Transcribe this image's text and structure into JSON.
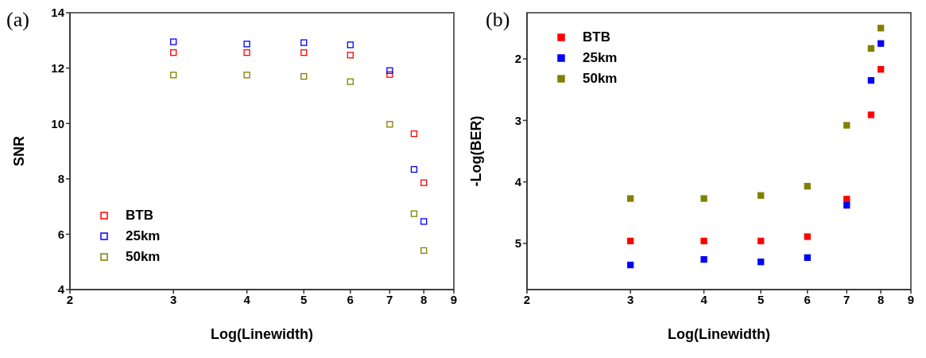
{
  "chart_data": [
    {
      "type": "scatter",
      "title": "(a)",
      "xlabel": "Log(Linewidth)",
      "ylabel": "SNR",
      "log": "x",
      "xlim": [
        2,
        9
      ],
      "xticks": [
        2,
        3,
        4,
        5,
        6,
        7,
        8,
        9
      ],
      "ylim": [
        4,
        14
      ],
      "yticks": [
        4,
        6,
        8,
        10,
        12,
        14
      ],
      "grid": false,
      "legend": "bottom left",
      "marker": "square",
      "x": [
        3,
        4,
        5,
        6,
        7,
        7.7,
        8
      ],
      "series": [
        {
          "name": "BTB",
          "color": "#ff0000",
          "values": [
            12.56,
            12.56,
            12.56,
            12.47,
            11.77,
            9.63,
            7.86
          ]
        },
        {
          "name": "25km",
          "color": "#0000ff",
          "values": [
            12.95,
            12.87,
            12.92,
            12.84,
            11.91,
            8.34,
            6.46
          ]
        },
        {
          "name": "50km",
          "color": "#808000",
          "values": [
            11.75,
            11.75,
            11.7,
            11.51,
            9.97,
            6.74,
            5.41
          ]
        }
      ]
    },
    {
      "type": "scatter",
      "title": "(b)",
      "xlabel": "Log(Linewidth)",
      "ylabel": "-Log(BER)",
      "log": "x",
      "xlim": [
        2,
        9
      ],
      "xticks": [
        2,
        3,
        4,
        5,
        6,
        7,
        8,
        9
      ],
      "ylim": [
        5.75,
        1.25
      ],
      "yticks": [
        2,
        3,
        4,
        5
      ],
      "grid": false,
      "legend": "top left",
      "marker": "square",
      "x": [
        3,
        4,
        5,
        6,
        7,
        7.7,
        8
      ],
      "series": [
        {
          "name": "BTB",
          "color": "#ff0000",
          "values": [
            4.96,
            4.96,
            4.96,
            4.89,
            4.28,
            2.91,
            2.17
          ]
        },
        {
          "name": "25km",
          "color": "#0000ff",
          "values": [
            5.35,
            5.26,
            5.3,
            5.23,
            4.38,
            2.35,
            1.75
          ]
        },
        {
          "name": "50km",
          "color": "#808000",
          "values": [
            4.27,
            4.27,
            4.22,
            4.07,
            3.08,
            1.83,
            1.5
          ]
        }
      ]
    }
  ]
}
